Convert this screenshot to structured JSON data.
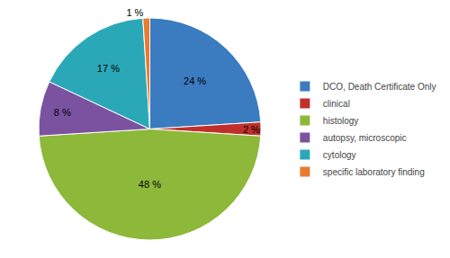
{
  "chart_data": {
    "type": "pie",
    "categories": [
      "DCO, Death Certificate Only",
      "clinical",
      "histology",
      "autopsy, microscopic",
      "cytology",
      "specific laboratory finding"
    ],
    "values": [
      24,
      2,
      48,
      8,
      17,
      1
    ],
    "value_labels": [
      "24 %",
      "2 %",
      "48 %",
      "8 %",
      "17 %",
      "1 %"
    ],
    "colors": [
      "#3B7BBF",
      "#C0302A",
      "#8DB83A",
      "#7B52A0",
      "#2BA8B8",
      "#E87B30"
    ],
    "data_labels": true,
    "legend": "right"
  }
}
